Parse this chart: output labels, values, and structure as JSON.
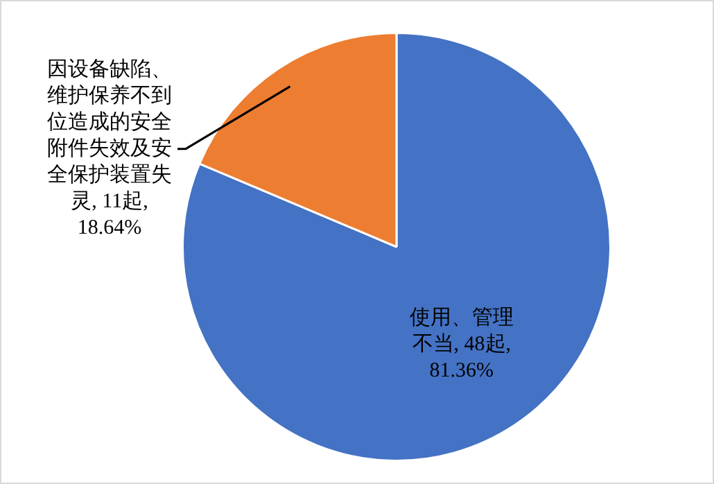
{
  "chart_data": {
    "type": "pie",
    "categories": [
      "使用、管理不当",
      "因设备缺陷、维护保养不到位造成的安全附件失效及安全保护装置失灵"
    ],
    "values": [
      48,
      11
    ],
    "colors": [
      "#4472c4",
      "#ed7d31"
    ],
    "value_labels": [
      "48起, 81.36%",
      "11起, 18.64%"
    ],
    "legend": false
  }
}
